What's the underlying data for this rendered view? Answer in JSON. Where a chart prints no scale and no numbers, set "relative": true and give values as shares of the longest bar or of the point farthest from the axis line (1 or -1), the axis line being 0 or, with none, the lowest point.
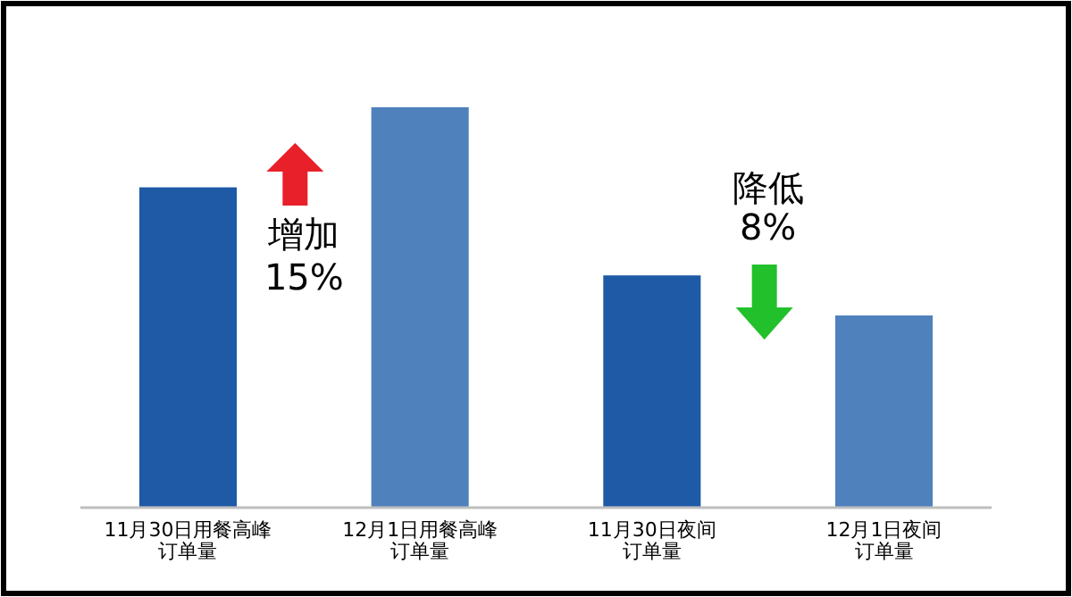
{
  "chart_data": {
    "type": "bar",
    "relative": true,
    "categories": [
      "11月30日用餐高峰订单量",
      "12月1日用餐高峰订单量",
      "11月30日夜间订单量",
      "12月1日夜间订单量"
    ],
    "values": [
      0.8,
      1,
      0.58,
      0.48
    ],
    "colors": [
      "#1f5aa6",
      "#4f81bd",
      "#1f5aa6",
      "#4f81bd"
    ],
    "annotations": [
      "增加\n15%",
      "降低\n8%"
    ]
  }
}
